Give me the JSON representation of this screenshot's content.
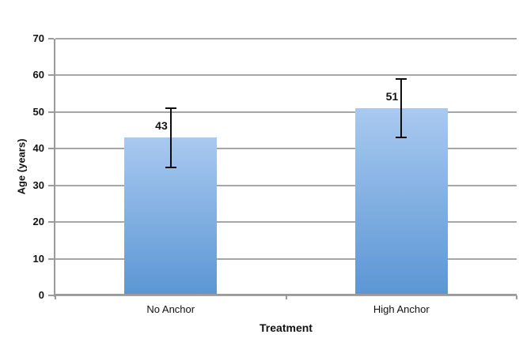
{
  "chart_data": {
    "type": "bar",
    "xlabel": "Treatment",
    "ylabel": "Age (years)",
    "categories": [
      "No Anchor",
      "High Anchor"
    ],
    "values": [
      43,
      51
    ],
    "data_labels": [
      "43",
      "51"
    ],
    "error_bars": [
      {
        "low": 35,
        "high": 51
      },
      {
        "low": 43,
        "high": 59
      }
    ],
    "ylim": [
      0,
      70
    ],
    "yticks": [
      0,
      10,
      20,
      30,
      40,
      50,
      60,
      70
    ],
    "grid": true,
    "legend": "none",
    "colors": {
      "bar_gradient_top": "#a9c9f0",
      "bar_gradient_bottom": "#5b96d4",
      "gridline": "#a6a6a6",
      "axis": "#9a9a9a",
      "error_bar": "#0d0d0d",
      "text": "#111111",
      "background": "#ffffff"
    }
  }
}
